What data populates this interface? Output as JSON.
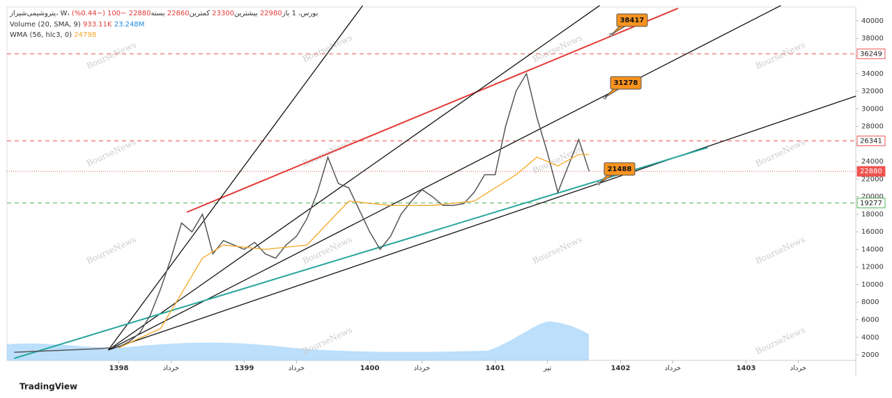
{
  "chart_data": {
    "type": "line",
    "header": {
      "symbol": "پتروشیمی‌شیراز، W، بورس، 1",
      "open_label": "باز",
      "open": "22980",
      "high_label": "بیشترین",
      "high": "23300",
      "low_label": "کمترین",
      "low": "22860",
      "close_label": "بسته",
      "close": "22880",
      "change": "−100 (−0.44%)"
    },
    "volume_legend": {
      "name": "Volume  (20, SMA, 9)",
      "value": "933.11K",
      "sma": "23.248M"
    },
    "wma_legend": {
      "name": "WMA  (56, hlc3, 0)",
      "value": "24798"
    },
    "watermark": "BourseNews",
    "footer": "TradingView",
    "xlim": [
      -10.7,
      70.5
    ],
    "ylim": [
      1370,
      41580
    ],
    "xticks": [
      {
        "value": 0,
        "label": "1398"
      },
      {
        "value": 5,
        "label": "خرداد"
      },
      {
        "value": 12,
        "label": "1399"
      },
      {
        "value": 17,
        "label": "خرداد"
      },
      {
        "value": 24,
        "label": "1400"
      },
      {
        "value": 29,
        "label": "خرداد"
      },
      {
        "value": 36,
        "label": "1401"
      },
      {
        "value": 41,
        "label": "تیر"
      },
      {
        "value": 48,
        "label": "1402"
      },
      {
        "value": 53,
        "label": "خرداد"
      },
      {
        "value": 60,
        "label": "1403"
      },
      {
        "value": 65,
        "label": "خرداد"
      }
    ],
    "yticks": [
      2000,
      4000,
      6000,
      8000,
      10000,
      12000,
      14000,
      16000,
      18000,
      20000,
      22000,
      24000,
      26000,
      28000,
      30000,
      32000,
      34000,
      36000,
      38000,
      40000
    ],
    "series": [
      {
        "name": "Price",
        "color": "#555555",
        "x": [
          -10,
          -8,
          -6,
          -4,
          -2,
          0,
          1,
          2,
          3,
          4,
          5,
          6,
          7,
          8,
          9,
          10,
          11,
          12,
          13,
          14,
          15,
          16,
          17,
          18,
          19,
          20,
          21,
          22,
          23,
          24,
          25,
          26,
          27,
          28,
          29,
          30,
          31,
          32,
          33,
          34,
          35,
          36,
          37,
          38,
          39,
          40,
          41,
          42,
          43,
          44,
          45
        ],
        "values": [
          2300,
          2400,
          2500,
          2600,
          2700,
          2900,
          3500,
          4500,
          6500,
          9500,
          13000,
          17000,
          16000,
          18000,
          13500,
          15000,
          14500,
          14000,
          14800,
          13500,
          13000,
          14500,
          15500,
          17500,
          20500,
          24500,
          21500,
          21000,
          18500,
          16000,
          14000,
          15500,
          18000,
          19500,
          20800,
          20000,
          19000,
          19000,
          19200,
          20500,
          22500,
          22500,
          28000,
          32000,
          34000,
          29000,
          25000,
          20500,
          23500,
          26500,
          22880
        ]
      },
      {
        "name": "WMA",
        "color": "#f5a623",
        "x": [
          0,
          4,
          6,
          8,
          10,
          14,
          18,
          22,
          26,
          30,
          34,
          38,
          40,
          42,
          44,
          45
        ],
        "values": [
          2800,
          5000,
          9000,
          13000,
          14500,
          14000,
          14500,
          19500,
          19000,
          19000,
          19500,
          22500,
          24500,
          23500,
          24800,
          24798
        ]
      }
    ],
    "levels": [
      {
        "value": 36249,
        "color": "#ef5350",
        "style": "dashed"
      },
      {
        "value": 26341,
        "color": "#ef5350",
        "style": "dashed"
      },
      {
        "value": 22880,
        "color": "#ef5350",
        "style": "dotted"
      },
      {
        "value": 19277,
        "color": "#4caf50",
        "style": "dashed"
      }
    ],
    "trendlines": [
      {
        "color": "#e53935",
        "start": [
          6.5,
          18230
        ],
        "end": [
          53.5,
          41425
        ]
      },
      {
        "color": "#111111",
        "start": [
          -1,
          2555
        ],
        "end": [
          23.33,
          41742
        ]
      },
      {
        "color": "#111111",
        "start": [
          -1,
          2555
        ],
        "end": [
          46,
          41742
        ]
      },
      {
        "color": "#111111",
        "start": [
          -1,
          2555
        ],
        "end": [
          63.33,
          41742
        ]
      },
      {
        "color": "#111111",
        "start": [
          -1,
          2555
        ],
        "end": [
          70.53,
          31450
        ]
      },
      {
        "color": "#26a69a",
        "start": [
          -10,
          1606
        ],
        "end": [
          56.33,
          25592
        ]
      }
    ],
    "callouts": [
      {
        "x": 47.1,
        "value": 38417
      },
      {
        "x": 46.5,
        "value": 31278
      },
      {
        "x": 45.9,
        "value": 21488
      }
    ]
  }
}
